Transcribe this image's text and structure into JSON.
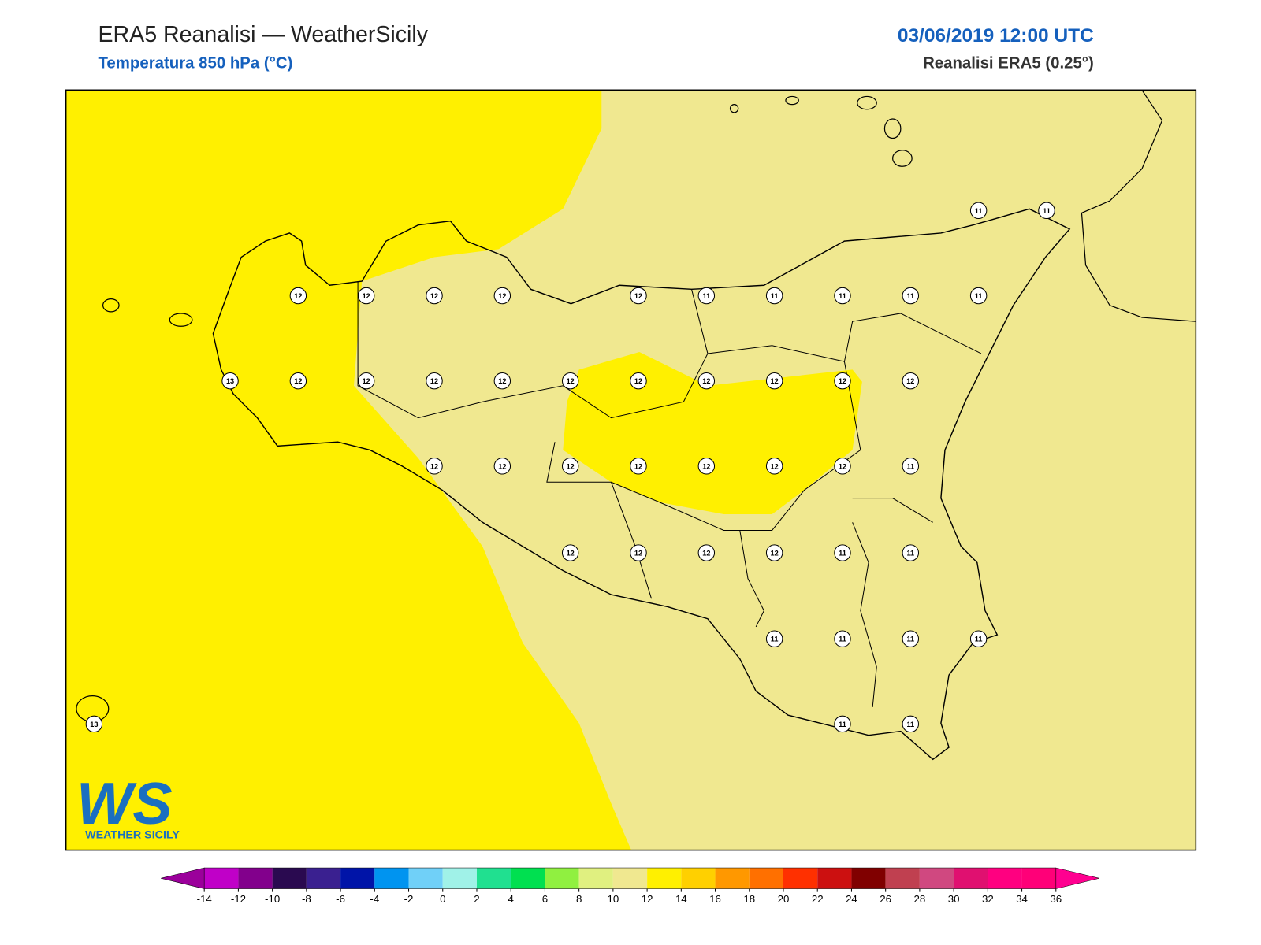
{
  "header": {
    "title": "ERA5 Reanalisi — WeatherSicily",
    "subtitle": "Temperatura 850 hPa (°C)",
    "date": "03/06/2019 12:00 UTC",
    "source": "Reanalisi ERA5 (0.25°)"
  },
  "logo": {
    "mark": "WS",
    "text": "WEATHER SICILY"
  },
  "stations": {
    "rows": [
      [
        null,
        null,
        null,
        null,
        null,
        null,
        null,
        null,
        null,
        null,
        null,
        null,
        null,
        11,
        11
      ],
      [
        null,
        null,
        null,
        12,
        12,
        12,
        12,
        null,
        12,
        11,
        11,
        11,
        11,
        11,
        null
      ],
      [
        null,
        null,
        13,
        12,
        12,
        12,
        12,
        12,
        12,
        12,
        12,
        12,
        12,
        null,
        null
      ],
      [
        null,
        null,
        null,
        null,
        null,
        12,
        12,
        12,
        12,
        12,
        12,
        12,
        11,
        null,
        null
      ],
      [
        null,
        null,
        null,
        null,
        null,
        null,
        null,
        12,
        12,
        12,
        12,
        11,
        11,
        null,
        null
      ],
      [
        null,
        null,
        null,
        null,
        null,
        null,
        null,
        null,
        null,
        null,
        11,
        11,
        11,
        11,
        null
      ],
      [
        13,
        null,
        null,
        null,
        null,
        null,
        null,
        null,
        null,
        null,
        null,
        11,
        11,
        null,
        null
      ]
    ]
  },
  "colorbar": {
    "ticks": [
      -14,
      -12,
      -10,
      -8,
      -6,
      -4,
      -2,
      0,
      2,
      4,
      6,
      8,
      10,
      12,
      14,
      16,
      18,
      20,
      22,
      24,
      26,
      28,
      30,
      32,
      34,
      36
    ],
    "under": "#9b009b",
    "over": "#ff0090",
    "colors": [
      "#c000c8",
      "#82008c",
      "#2a0a50",
      "#3a2090",
      "#0014a8",
      "#0094f0",
      "#70d0f8",
      "#a0f2e8",
      "#20e090",
      "#00e050",
      "#90f040",
      "#e0f080",
      "#f0e890",
      "#fff000",
      "#ffd000",
      "#ff9800",
      "#ff7000",
      "#ff3000",
      "#cc1010",
      "#800000",
      "#c04050",
      "#d04880",
      "#e01070",
      "#ff0080",
      "#ff0078"
    ]
  }
}
